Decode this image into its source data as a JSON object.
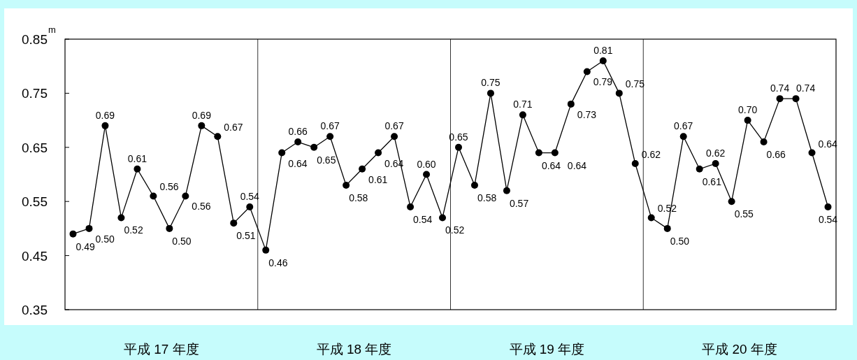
{
  "chart_data": {
    "type": "line",
    "ylabel": "m",
    "ylim": [
      0.35,
      0.85
    ],
    "yticks": [
      0.35,
      0.45,
      0.55,
      0.65,
      0.75,
      0.85
    ],
    "categories": [
      null,
      null,
      null,
      null,
      null,
      null,
      null,
      null,
      null,
      null,
      null,
      null,
      null,
      null,
      null,
      null,
      null,
      null,
      null,
      null,
      null,
      null,
      null,
      null,
      null,
      null,
      null,
      null,
      null,
      null,
      null,
      null,
      null,
      null,
      null,
      null,
      null,
      null,
      null,
      null,
      null,
      null,
      null,
      null,
      null,
      null,
      null,
      null
    ],
    "series": [
      {
        "color": "#000000",
        "values": [
          0.49,
          0.5,
          0.69,
          0.52,
          0.61,
          0.56,
          0.5,
          0.56,
          0.69,
          0.67,
          0.51,
          0.54,
          0.46,
          0.64,
          0.66,
          0.65,
          0.67,
          0.58,
          0.61,
          0.64,
          0.67,
          0.54,
          0.6,
          0.52,
          0.65,
          0.58,
          0.75,
          0.57,
          0.71,
          0.64,
          0.64,
          0.73,
          0.79,
          0.81,
          0.75,
          0.62,
          0.52,
          0.5,
          0.67,
          0.61,
          0.62,
          0.55,
          0.7,
          0.66,
          0.74,
          0.74,
          0.64,
          0.54
        ],
        "value_labels": [
          "0.49",
          "0.50",
          "0.69",
          "0.52",
          "0.61",
          "0.56",
          "0.50",
          "0.56",
          "0.69",
          "0.67",
          "0.51",
          "0.54",
          "0.46",
          "0.64",
          "0.66",
          "0.65",
          "0.67",
          "0.58",
          "0.61",
          "0.64",
          "0.67",
          "0.54",
          "0.60",
          "0.52",
          "0.65",
          "0.58",
          "0.75",
          "0.57",
          "0.71",
          "0.64",
          "0.64",
          "0.73",
          "0.79",
          "0.81",
          "0.75",
          "0.62",
          "0.52",
          "0.50",
          "0.67",
          "0.61",
          "0.62",
          "0.55",
          "0.70",
          "0.66",
          "0.74",
          "0.74",
          "0.64",
          "0.54"
        ]
      }
    ],
    "annotations": [
      "平成 17 年度",
      "平成 18 年度",
      "平成 19 年度",
      "平成 20 年度"
    ],
    "marker": "circle",
    "line_style": "solid",
    "grid": false
  }
}
